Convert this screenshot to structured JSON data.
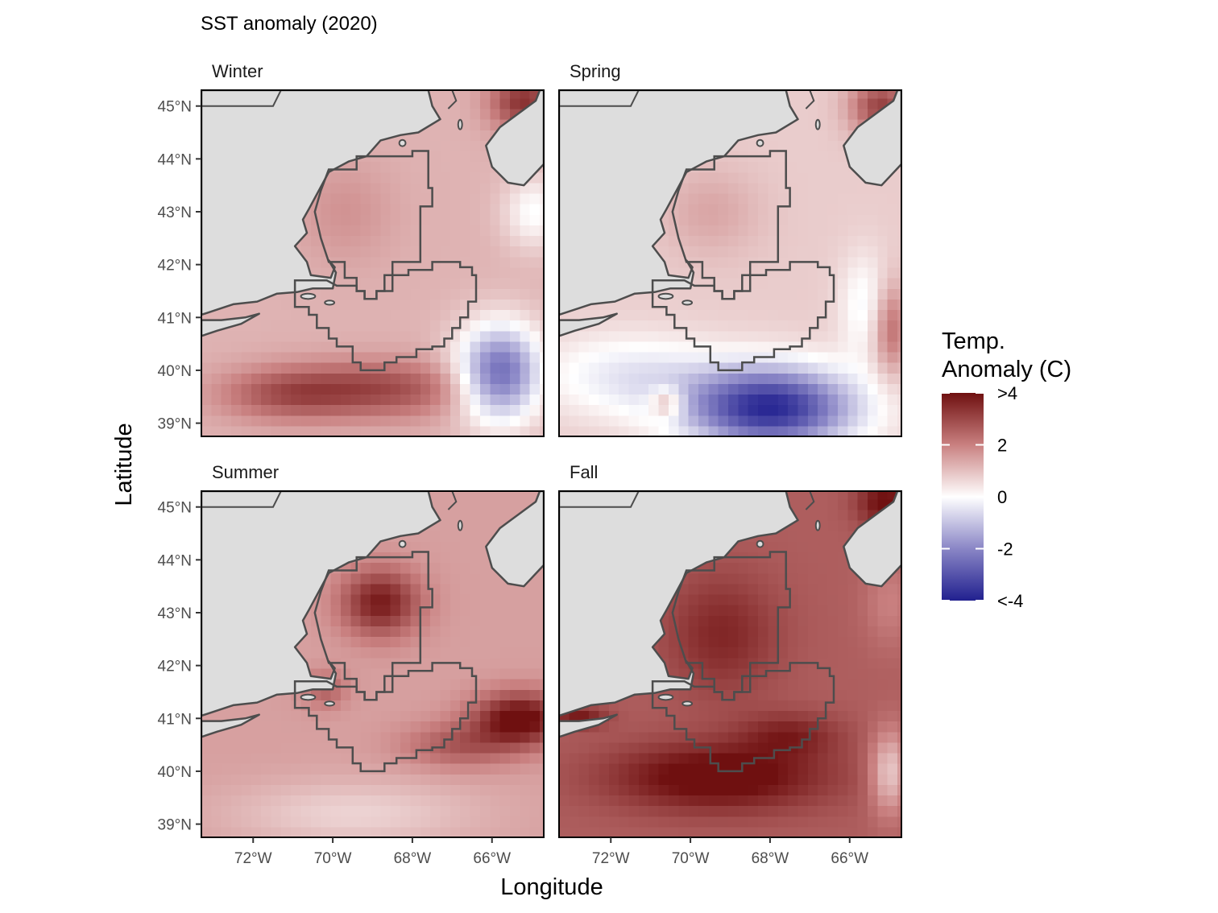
{
  "chart_data": {
    "type": "heatmap",
    "title": "SST anomaly (2020)",
    "xlabel": "Longitude",
    "ylabel": "Latitude",
    "xlim": [
      -73.3,
      -64.7
    ],
    "ylim": [
      38.75,
      45.3
    ],
    "x_ticks": [
      {
        "value": -72,
        "label": "72°W"
      },
      {
        "value": -70,
        "label": "70°W"
      },
      {
        "value": -68,
        "label": "68°W"
      },
      {
        "value": -66,
        "label": "66°W"
      }
    ],
    "y_ticks": [
      {
        "value": 39,
        "label": "39°N"
      },
      {
        "value": 40,
        "label": "40°N"
      },
      {
        "value": 41,
        "label": "41°N"
      },
      {
        "value": 42,
        "label": "42°N"
      },
      {
        "value": 43,
        "label": "43°N"
      },
      {
        "value": 44,
        "label": "44°N"
      },
      {
        "value": 45,
        "label": "45°N"
      }
    ],
    "legend": {
      "title_line1": "Temp.",
      "title_line2": "Anomaly (C)",
      "position": "right",
      "range": [
        -4,
        4
      ],
      "ticks": [
        {
          "value": 4,
          "label": ">4"
        },
        {
          "value": 2,
          "label": "2"
        },
        {
          "value": 0,
          "label": "0"
        },
        {
          "value": -2,
          "label": "-2"
        },
        {
          "value": -4,
          "label": "<-4"
        }
      ],
      "colors": {
        "low": "#21208f",
        "mid": "#ffffff",
        "high": "#6f1010"
      }
    },
    "land_color": "#dddddd",
    "outline_color": "#4d4d4d",
    "panels": [
      {
        "name": "Winter",
        "base": 1.2,
        "features": [
          {
            "lon": -68.8,
            "lat": 39.65,
            "slon": 1.7,
            "slat": 0.38,
            "amp": 1.7
          },
          {
            "lon": -71.2,
            "lat": 39.55,
            "slon": 1.2,
            "slat": 0.35,
            "amp": 1.3
          },
          {
            "lon": -65.8,
            "lat": 39.95,
            "slon": 0.75,
            "slat": 0.65,
            "amp": -3.8
          },
          {
            "lon": -65.2,
            "lat": 45.1,
            "slon": 0.6,
            "slat": 0.4,
            "amp": 2.2
          },
          {
            "lon": -64.95,
            "lat": 43.0,
            "slon": 0.55,
            "slat": 0.5,
            "amp": -1.2
          },
          {
            "lon": -69.7,
            "lat": 43.0,
            "slon": 0.9,
            "slat": 0.7,
            "amp": 0.5
          }
        ]
      },
      {
        "name": "Spring",
        "base": 0.8,
        "features": [
          {
            "lon": -68.0,
            "lat": 39.3,
            "slon": 1.5,
            "slat": 0.55,
            "amp": -4.6
          },
          {
            "lon": -71.5,
            "lat": 39.9,
            "slon": 1.6,
            "slat": 0.55,
            "amp": -1.2
          },
          {
            "lon": -65.6,
            "lat": 41.2,
            "slon": 0.45,
            "slat": 0.7,
            "amp": -1.0
          },
          {
            "lon": -64.95,
            "lat": 40.8,
            "slon": 0.35,
            "slat": 0.6,
            "amp": 1.6
          },
          {
            "lon": -65.2,
            "lat": 45.0,
            "slon": 0.55,
            "slat": 0.4,
            "amp": 2.3
          },
          {
            "lon": -69.5,
            "lat": 43.0,
            "slon": 0.9,
            "slat": 0.6,
            "amp": 0.6
          },
          {
            "lon": -70.6,
            "lat": 39.4,
            "slon": 0.3,
            "slat": 0.2,
            "amp": 1.6
          }
        ]
      },
      {
        "name": "Summer",
        "base": 1.5,
        "features": [
          {
            "lon": -68.8,
            "lat": 43.2,
            "slon": 0.7,
            "slat": 0.45,
            "amp": 2.3
          },
          {
            "lon": -65.3,
            "lat": 41.0,
            "slon": 0.8,
            "slat": 0.35,
            "amp": 2.8
          },
          {
            "lon": -66.8,
            "lat": 40.5,
            "slon": 1.0,
            "slat": 0.3,
            "amp": 1.2
          },
          {
            "lon": -69.5,
            "lat": 39.2,
            "slon": 2.2,
            "slat": 0.45,
            "amp": -0.8
          },
          {
            "lon": -70.2,
            "lat": 41.55,
            "slon": 0.4,
            "slat": 0.25,
            "amp": 1.0
          }
        ]
      },
      {
        "name": "Fall",
        "base": 2.6,
        "features": [
          {
            "lon": -69.3,
            "lat": 39.9,
            "slon": 1.9,
            "slat": 0.45,
            "amp": 1.8
          },
          {
            "lon": -67.5,
            "lat": 40.7,
            "slon": 0.9,
            "slat": 0.3,
            "amp": 1.0
          },
          {
            "lon": -69.2,
            "lat": 42.6,
            "slon": 1.0,
            "slat": 0.8,
            "amp": 1.0
          },
          {
            "lon": -65.0,
            "lat": 40.0,
            "slon": 0.35,
            "slat": 0.55,
            "amp": -1.8
          },
          {
            "lon": -65.0,
            "lat": 43.2,
            "slon": 0.45,
            "slat": 0.6,
            "amp": -0.6
          },
          {
            "lon": -65.1,
            "lat": 45.1,
            "slon": 0.5,
            "slat": 0.35,
            "amp": 1.5
          },
          {
            "lon": -72.8,
            "lat": 41.05,
            "slon": 0.5,
            "slat": 0.15,
            "amp": 1.2
          }
        ]
      }
    ]
  }
}
